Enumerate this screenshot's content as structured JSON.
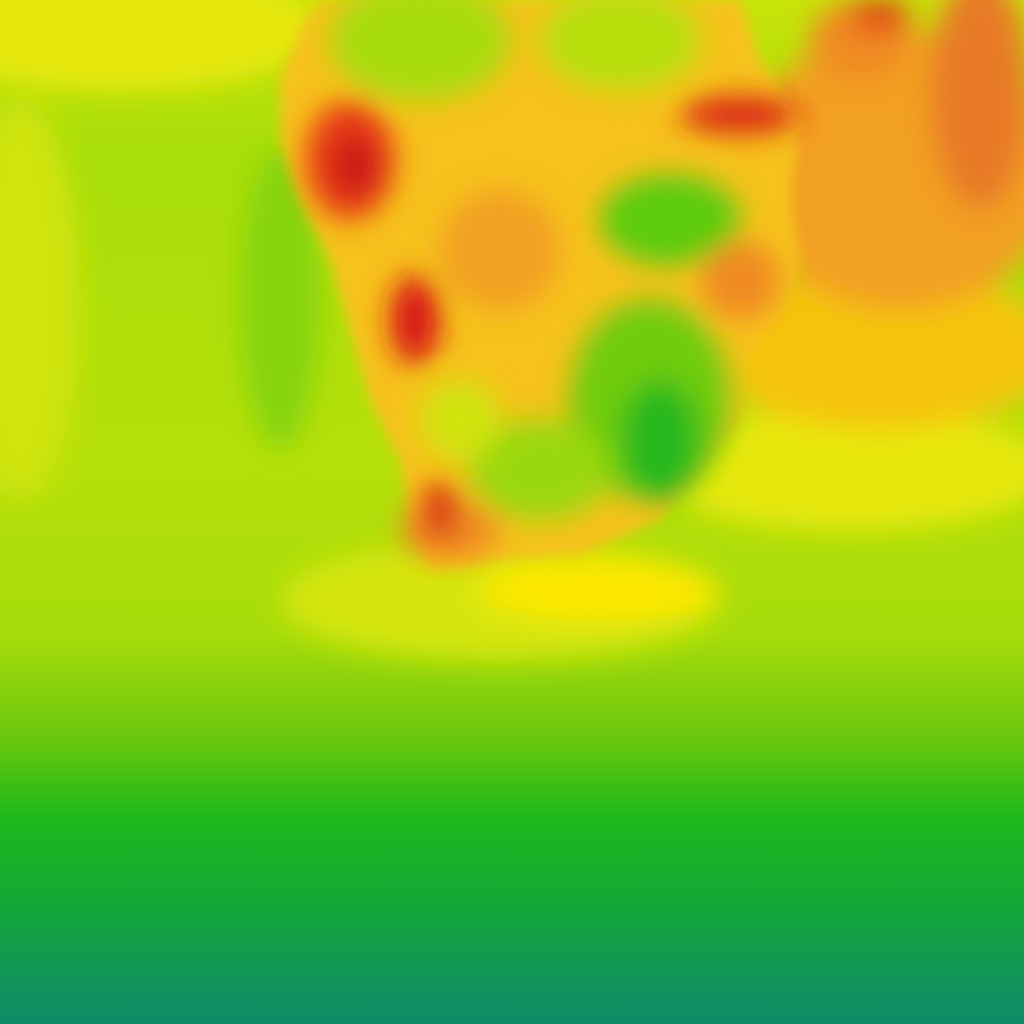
{
  "map": {
    "type": "temperature-heatmap-tile",
    "region": "southern-africa",
    "palette": {
      "coldest": "#0f8a6a",
      "cold": "#14a83a",
      "cool": "#22bb1a",
      "mild": "#7fd10a",
      "warm": "#c6e40a",
      "hot": "#ffe800",
      "hotter": "#f5a623",
      "hottest": "#d81818"
    }
  }
}
